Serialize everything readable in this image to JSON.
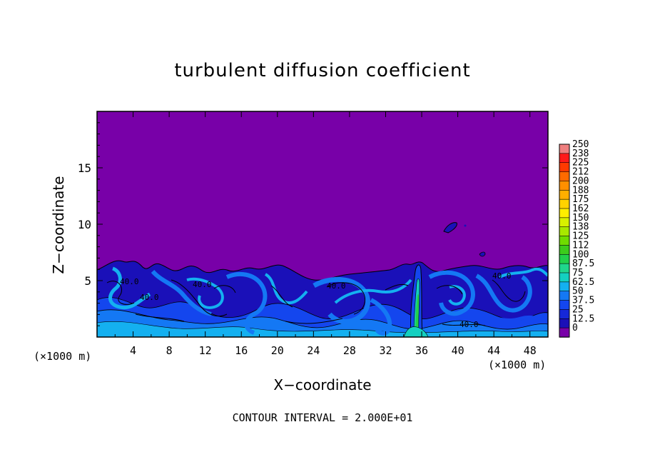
{
  "chart_data": {
    "type": "heatmap",
    "title": "turbulent diffusion coefficient",
    "xlabel": "X−coordinate",
    "ylabel": "Z−coordinate",
    "x_unit_left": "(×1000 m)",
    "x_unit_right": "(×1000 m)",
    "footer": "CONTOUR INTERVAL = 2.000E+01",
    "xlim": [
      0,
      50
    ],
    "ylim": [
      0,
      20
    ],
    "x_ticks": [
      "4",
      "8",
      "12",
      "16",
      "20",
      "24",
      "28",
      "32",
      "36",
      "40",
      "44",
      "48"
    ],
    "y_ticks": [
      "5",
      "10",
      "15"
    ],
    "colorbar_labels": [
      "250",
      "238",
      "225",
      "212",
      "200",
      "188",
      "175",
      "162",
      "150",
      "138",
      "125",
      "112",
      "100",
      "87.5",
      "75",
      "62.5",
      "50",
      "37.5",
      "25",
      "12.5",
      "0"
    ],
    "colorbar_colors": [
      "#ef7f7f",
      "#ff1a1a",
      "#ff3a00",
      "#ff6a00",
      "#ff8f00",
      "#ffaf00",
      "#ffd200",
      "#ffee00",
      "#d8f000",
      "#a8e800",
      "#6fdc00",
      "#3ccc1c",
      "#22d04a",
      "#20d68c",
      "#14d0c0",
      "#14b0f0",
      "#1478f4",
      "#1446ee",
      "#1628d8",
      "#1a10b8",
      "#7800a8"
    ],
    "background_value": 0,
    "background_color": "#7800a8",
    "boundary_layer_top_km": 6,
    "contour_labels": [
      "40.0",
      "40.0",
      "40.0",
      "40.0",
      "40.0",
      "40.0"
    ]
  }
}
